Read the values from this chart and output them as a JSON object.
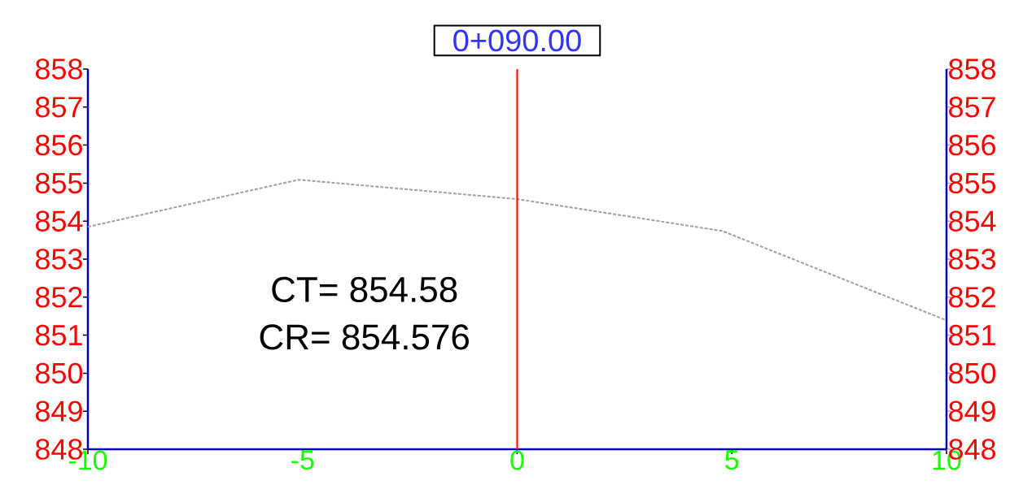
{
  "chart_data": {
    "type": "line",
    "title": "0+090.00",
    "x": [
      -10,
      -5.09,
      0,
      4.78,
      10
    ],
    "series": [
      {
        "color": "#a0a0a0",
        "values": [
          853.85,
          855.09,
          854.58,
          853.74,
          851.39
        ]
      }
    ],
    "xlim": [
      -10,
      10
    ],
    "xticks": [
      -10,
      -5,
      0,
      5,
      10
    ],
    "ylim": [
      848,
      858
    ],
    "yticks": [
      848,
      849,
      850,
      851,
      852,
      853,
      854,
      855,
      856,
      857,
      858
    ],
    "y2lim": [
      848,
      858
    ],
    "y2ticks": [
      848,
      849,
      850,
      851,
      852,
      853,
      854,
      855,
      856,
      857,
      858
    ],
    "ref_lines": [
      {
        "axis": "x",
        "value": 0,
        "color": "#ff0000"
      }
    ],
    "annotations": [
      "CT= 854.58",
      "CR= 854.576"
    ],
    "line_style": "dashed",
    "grid": false
  }
}
